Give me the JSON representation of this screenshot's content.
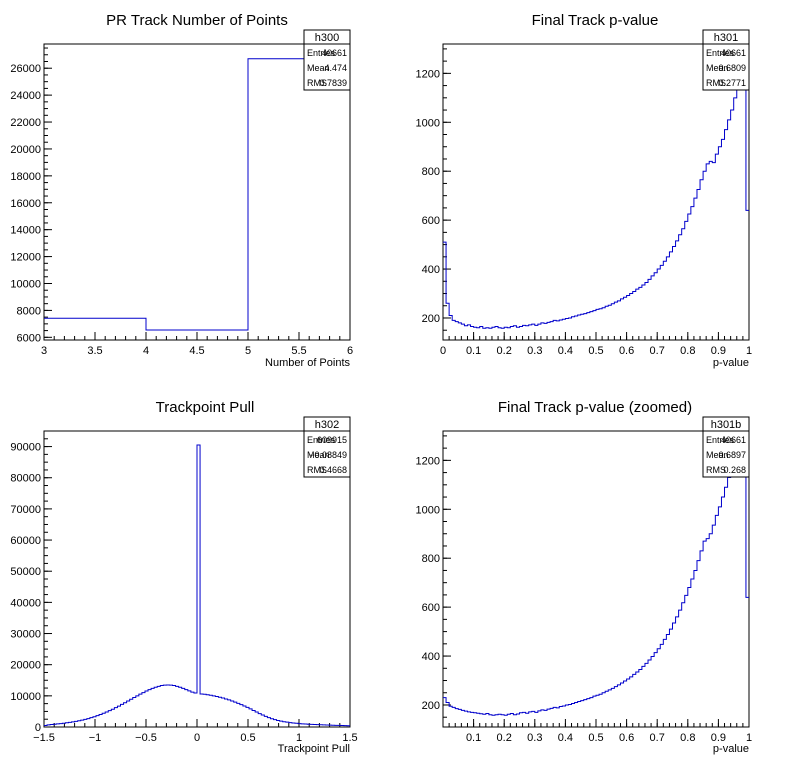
{
  "chart_data": [
    {
      "type": "bar",
      "histogram": "step",
      "title": "PR Track Number of Points",
      "xlabel": "Number of Points",
      "ylabel": "",
      "xlim": [
        3,
        6
      ],
      "ylim": [
        5800,
        27800
      ],
      "xticks": [
        "3",
        "3.5",
        "4",
        "4.5",
        "5",
        "5.5",
        "6"
      ],
      "yticks": [
        "6000",
        "8000",
        "10000",
        "12000",
        "14000",
        "16000",
        "18000",
        "20000",
        "22000",
        "24000",
        "26000"
      ],
      "stats": {
        "name": "h300",
        "entries": "40661",
        "mean": "4.474",
        "rms": "0.7839"
      },
      "bin_edges": [
        3,
        4,
        5,
        6
      ],
      "values": [
        7420,
        6540,
        26700
      ]
    },
    {
      "type": "bar",
      "histogram": "step",
      "title": "Final Track p-value",
      "xlabel": "p-value",
      "ylabel": "",
      "xlim": [
        0,
        1
      ],
      "ylim": [
        110,
        1320
      ],
      "xticks": [
        "0",
        "0.1",
        "0.2",
        "0.3",
        "0.4",
        "0.5",
        "0.6",
        "0.7",
        "0.8",
        "0.9",
        "1"
      ],
      "yticks": [
        "200",
        "400",
        "600",
        "800",
        "1000",
        "1200"
      ],
      "stats": {
        "name": "h301",
        "entries": "40661",
        "mean": "0.6809",
        "rms": "0.2771"
      },
      "bin_start": 0,
      "bin_width": 0.01,
      "values": [
        510,
        260,
        210,
        190,
        185,
        180,
        175,
        168,
        172,
        165,
        162,
        160,
        165,
        158,
        160,
        158,
        162,
        165,
        160,
        158,
        162,
        160,
        165,
        168,
        162,
        165,
        170,
        168,
        172,
        175,
        170,
        175,
        180,
        178,
        182,
        185,
        190,
        188,
        192,
        195,
        198,
        200,
        205,
        208,
        212,
        215,
        218,
        222,
        226,
        230,
        235,
        238,
        242,
        248,
        252,
        258,
        265,
        270,
        278,
        285,
        292,
        300,
        308,
        318,
        325,
        335,
        345,
        358,
        372,
        385,
        400,
        415,
        432,
        450,
        470,
        492,
        515,
        540,
        565,
        595,
        625,
        655,
        690,
        725,
        765,
        800,
        830,
        840,
        835,
        870,
        900,
        930,
        970,
        1010,
        1050,
        1100,
        1150,
        1160,
        1190,
        640
      ]
    },
    {
      "type": "bar",
      "histogram": "step",
      "title": "Trackpoint Pull",
      "xlabel": "Trackpoint Pull",
      "ylabel": "",
      "xlim": [
        -1.5,
        1.5
      ],
      "ylim": [
        0,
        95000
      ],
      "xticks": [
        "-1.5",
        "-1",
        "-0.5",
        "0",
        "0.5",
        "1",
        "1.5"
      ],
      "yticks": [
        "0",
        "10000",
        "20000",
        "30000",
        "40000",
        "50000",
        "60000",
        "70000",
        "80000",
        "90000"
      ],
      "stats": {
        "name": "h302",
        "entries": "609915",
        "mean": "-0.08849",
        "rms": "0.4668"
      },
      "bin_start": -1.5,
      "bin_width": 0.03,
      "values": [
        500,
        700,
        800,
        900,
        1000,
        1100,
        1200,
        1350,
        1500,
        1650,
        1800,
        2000,
        2200,
        2450,
        2700,
        3000,
        3300,
        3650,
        4000,
        4400,
        4800,
        5250,
        5700,
        6200,
        6700,
        7250,
        7800,
        8350,
        8900,
        9450,
        10000,
        10550,
        11050,
        11550,
        12000,
        12400,
        12750,
        13050,
        13300,
        13450,
        13500,
        13450,
        13300,
        13050,
        12750,
        12400,
        12000,
        11600,
        11200,
        10900,
        90500,
        10600,
        10500,
        10350,
        10200,
        10000,
        9800,
        9550,
        9300,
        9000,
        8700,
        8350,
        8000,
        7600,
        7200,
        6750,
        6300,
        5800,
        5300,
        4800,
        4300,
        3850,
        3400,
        3000,
        2650,
        2350,
        2100,
        1900,
        1700,
        1550,
        1400,
        1300,
        1200,
        1100,
        1000,
        950,
        900,
        850,
        800,
        760,
        720,
        680,
        640,
        600,
        570,
        540,
        510,
        480,
        450,
        420
      ]
    },
    {
      "type": "bar",
      "histogram": "step",
      "title": "Final Track p-value (zoomed)",
      "xlabel": "p-value",
      "ylabel": "",
      "xlim": [
        0,
        1
      ],
      "ylim": [
        110,
        1320
      ],
      "xticks": [
        "0.1",
        "0.2",
        "0.3",
        "0.4",
        "0.5",
        "0.6",
        "0.7",
        "0.8",
        "0.9",
        "1"
      ],
      "yticks": [
        "200",
        "400",
        "600",
        "800",
        "1000",
        "1200"
      ],
      "stats": {
        "name": "h301b",
        "entries": "40661",
        "mean": "0.6897",
        "rms": "0.268"
      },
      "bin_start": 0,
      "bin_width": 0.01,
      "values": [
        230,
        210,
        195,
        190,
        185,
        182,
        178,
        175,
        172,
        170,
        168,
        166,
        164,
        162,
        165,
        160,
        158,
        160,
        162,
        160,
        158,
        162,
        165,
        160,
        163,
        168,
        170,
        166,
        172,
        174,
        170,
        176,
        180,
        178,
        183,
        186,
        190,
        188,
        194,
        196,
        200,
        202,
        206,
        210,
        214,
        218,
        222,
        226,
        230,
        236,
        240,
        244,
        250,
        256,
        262,
        268,
        275,
        282,
        290,
        298,
        306,
        315,
        325,
        335,
        345,
        358,
        370,
        384,
        398,
        414,
        430,
        448,
        468,
        488,
        510,
        535,
        560,
        588,
        618,
        648,
        680,
        715,
        750,
        790,
        830,
        870,
        880,
        900,
        935,
        975,
        1010,
        1050,
        1090,
        1130,
        1160,
        1180,
        1200,
        1220,
        1240,
        640
      ]
    }
  ]
}
